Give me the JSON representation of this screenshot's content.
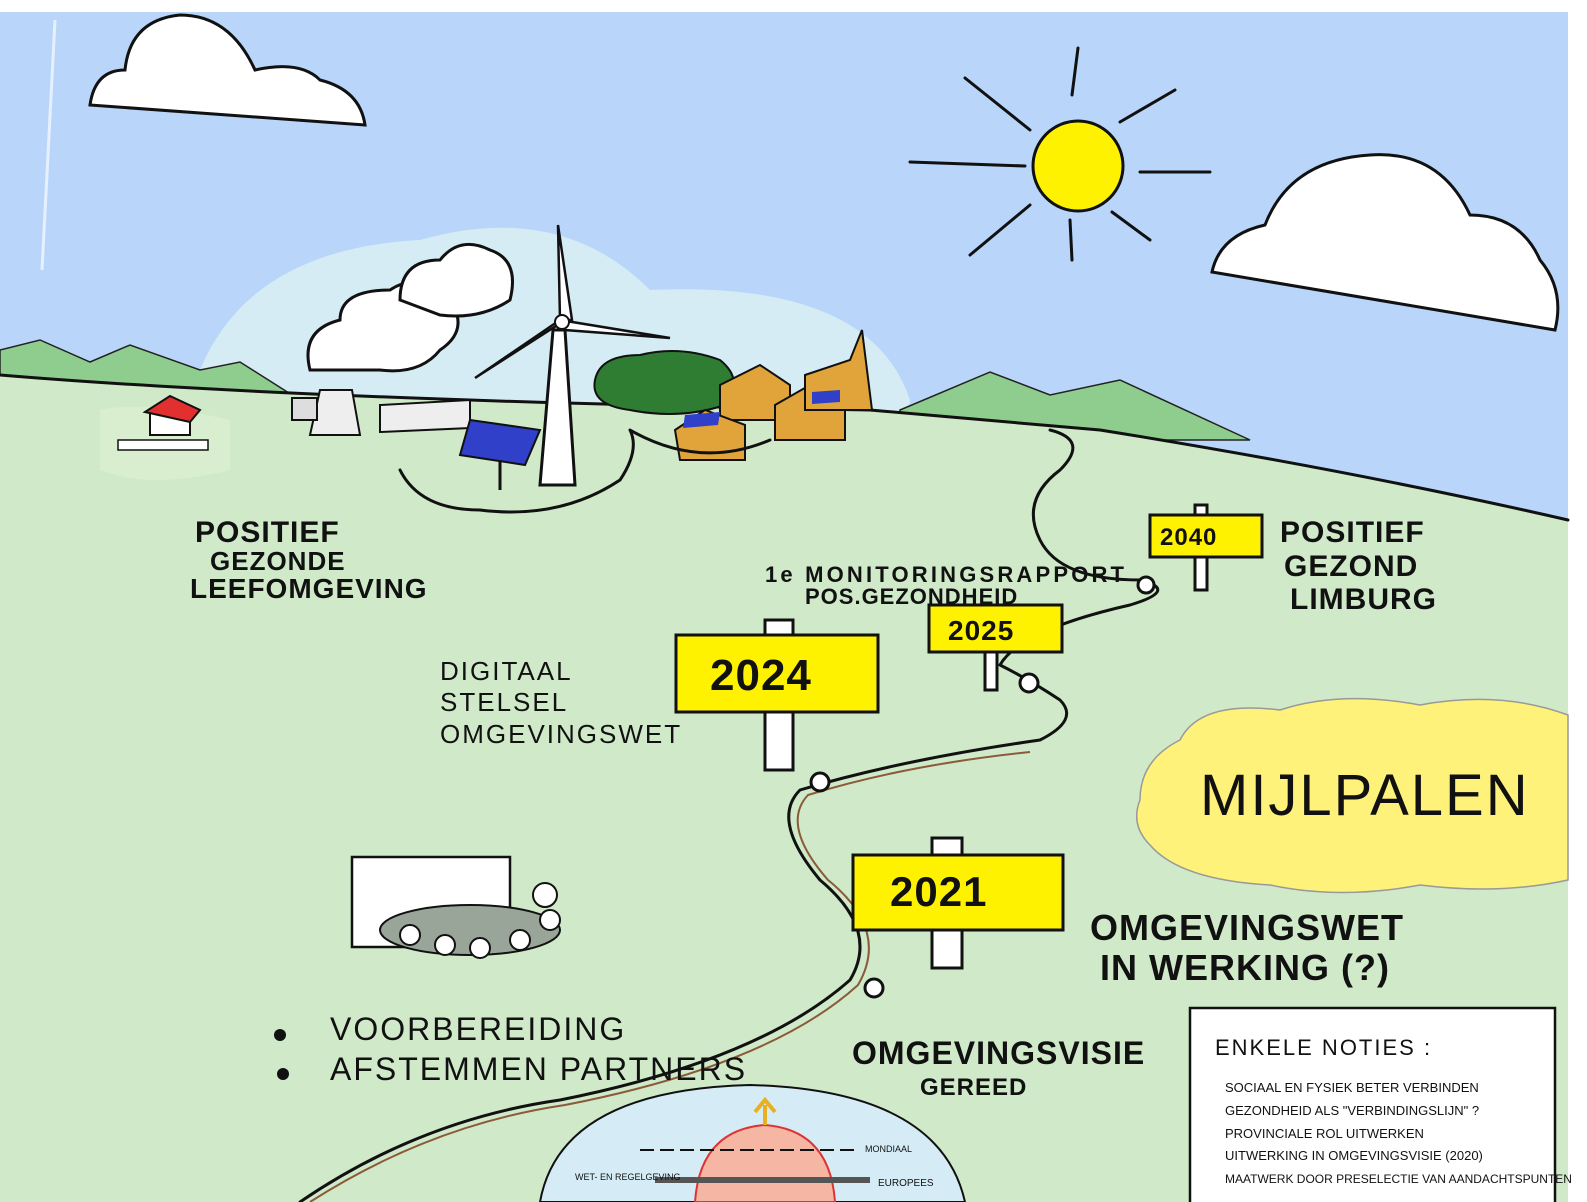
{
  "scene": {
    "vision": [
      "POSITIEF",
      "GEZONDE",
      "LEEFOMGEVING"
    ],
    "milestones": [
      {
        "year": "2040",
        "label": [
          "POSITIEF",
          "GEZOND",
          "LIMBURG"
        ]
      },
      {
        "year": "2025",
        "label": [
          "1e MONITORINGSRAPPORT",
          "POS.GEZONDHEID"
        ]
      },
      {
        "year": "2024",
        "label": [
          "DIGITAAL",
          "STELSEL",
          "OMGEVINGSWET"
        ]
      },
      {
        "year": "2021",
        "label": [
          "OMGEVINGSWET",
          "IN WERKING (?)"
        ]
      }
    ],
    "title": "MIJLPALEN",
    "preparation": [
      "VOORBEREIDING",
      "AFSTEMMEN PARTNERS"
    ],
    "vision_document": [
      "OMGEVINGSVISIE",
      "GEREED"
    ],
    "notes": {
      "title": "ENKELE NOTIES :",
      "items": [
        "SOCIAAL EN FYSIEK BETER VERBINDEN",
        "GEZONDHEID ALS \"VERBINDINGSLIJN\" ?",
        "PROVINCIALE ROL UITWERKEN",
        "UITWERKING IN OMGEVINGSVISIE (2020)",
        "MAATWERK DOOR PRESELECTIE VAN AANDACHTSPUNTEN"
      ]
    },
    "diagram": [
      "WET- EN REGELGEVING",
      "MONDIAAL",
      "EUROPEES"
    ]
  }
}
